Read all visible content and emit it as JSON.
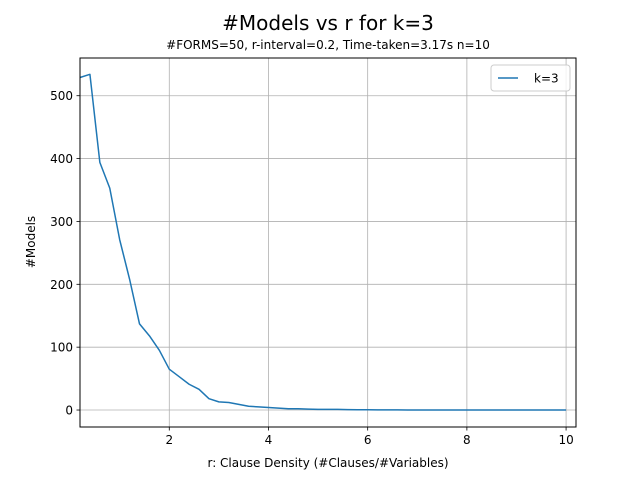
{
  "chart_data": {
    "type": "line",
    "title": "#Models vs r for k=3",
    "subtitle": "#FORMS=50, r-interval=0.2, Time-taken=3.17s n=10",
    "xlabel": "r: Clause Density (#Clauses/#Variables)",
    "ylabel": "#Models",
    "xlim": [
      0.2,
      10.2
    ],
    "ylim": [
      -27,
      560
    ],
    "xticks": [
      2,
      4,
      6,
      8,
      10
    ],
    "yticks": [
      0,
      100,
      200,
      300,
      400,
      500
    ],
    "grid": true,
    "legend_position": "top-right",
    "series": [
      {
        "name": "k=3",
        "color": "#1f77b4",
        "x": [
          0.2,
          0.4,
          0.6,
          0.8,
          1.0,
          1.2,
          1.4,
          1.6,
          1.8,
          2.0,
          2.2,
          2.4,
          2.6,
          2.8,
          3.0,
          3.2,
          3.4,
          3.6,
          3.8,
          4.0,
          4.2,
          4.4,
          4.6,
          4.8,
          5.0,
          5.2,
          5.4,
          5.6,
          5.8,
          6.0,
          6.2,
          6.4,
          6.6,
          6.8,
          7.0,
          7.2,
          7.4,
          7.6,
          7.8,
          8.0,
          8.2,
          8.4,
          8.6,
          8.8,
          9.0,
          9.2,
          9.4,
          9.6,
          9.8,
          10.0
        ],
        "y": [
          529,
          534,
          394,
          353,
          271,
          208,
          137,
          118,
          95,
          65,
          53,
          41,
          33,
          18,
          13,
          12,
          9,
          6,
          5,
          4,
          3,
          2,
          2,
          1.5,
          1,
          1,
          1,
          0.6,
          0.5,
          0.4,
          0.3,
          0.3,
          0.2,
          0.1,
          0,
          0,
          0,
          0,
          0,
          0,
          0,
          0,
          0,
          0,
          0,
          0,
          0,
          0,
          0,
          0
        ]
      }
    ]
  }
}
